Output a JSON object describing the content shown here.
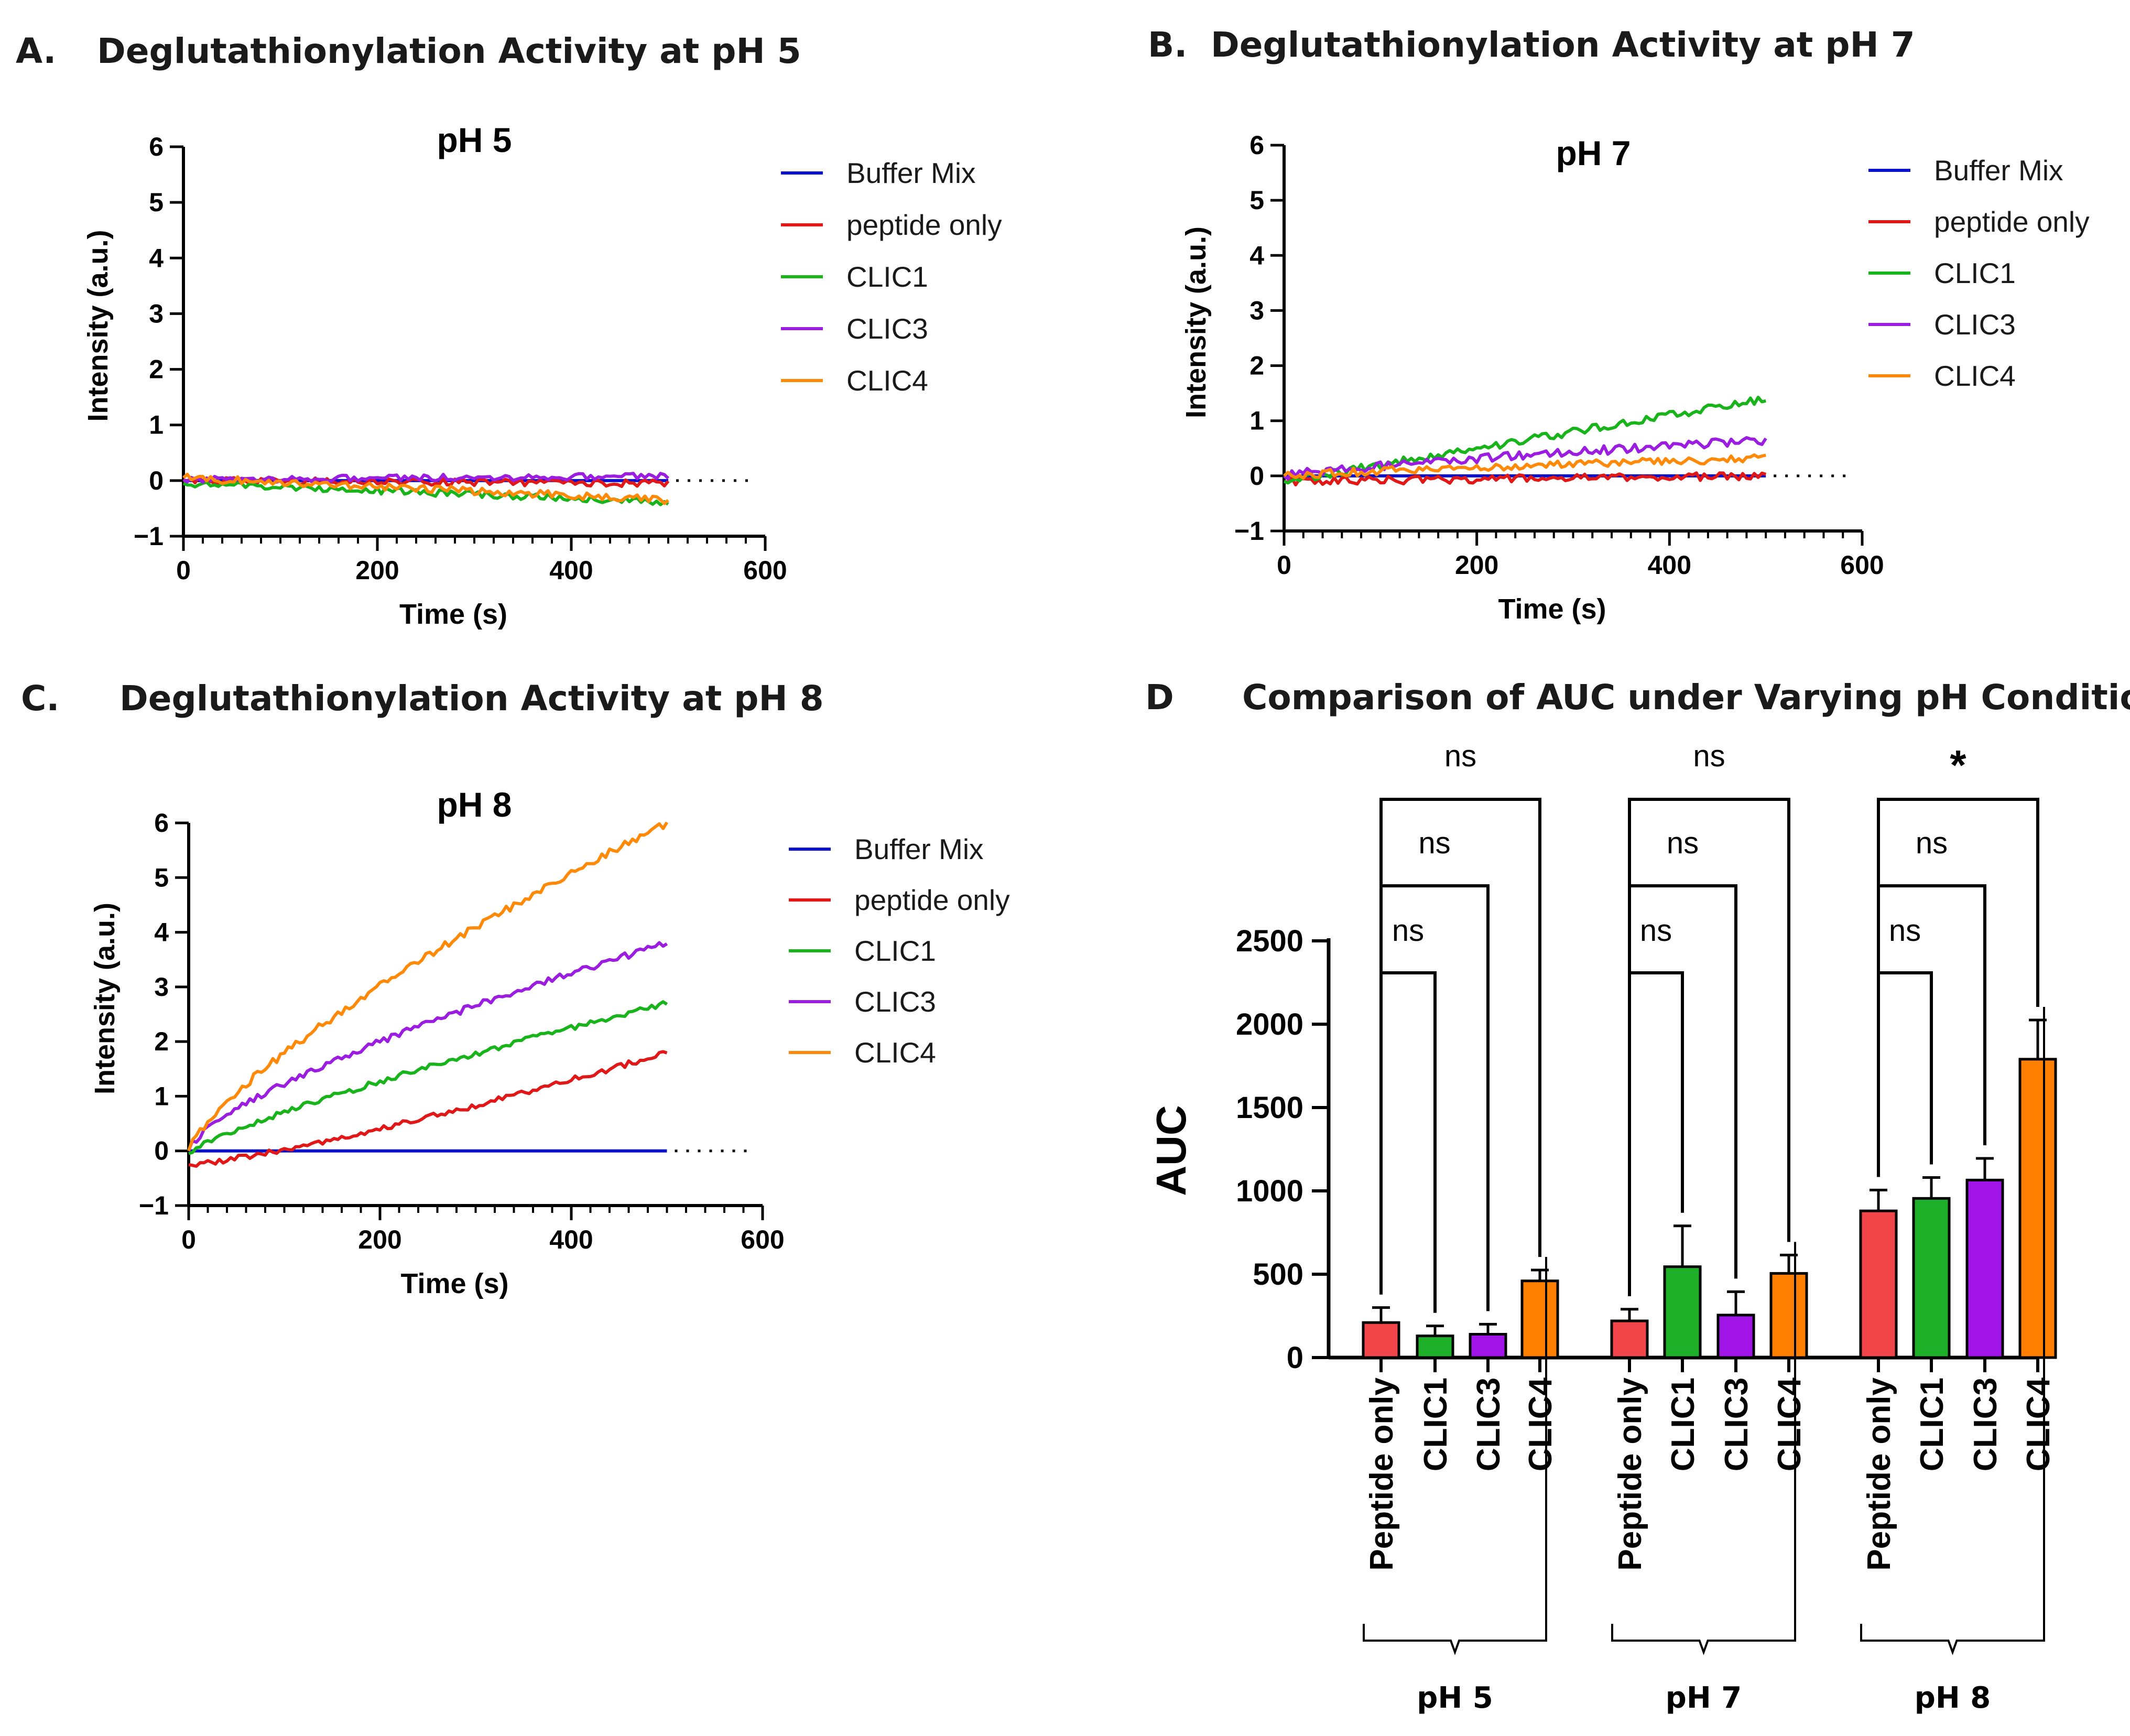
{
  "colors": {
    "Buffer Mix": "#0a12cc",
    "peptide only": "#e01818",
    "CLIC1": "#19b31c",
    "CLIC3": "#9b1ee0",
    "CLIC4": "#ff8a0a",
    "bar_peptide": "#f2454a",
    "bar_clic1": "#1fb02a",
    "bar_clic3": "#a014e8",
    "bar_clic4": "#ff8000"
  },
  "chart_data": [
    {
      "panel": "A.",
      "panel_title": "Deglutathionylation Activity at pH 5",
      "type": "line",
      "title": "pH 5",
      "xlabel": "Time (s)",
      "ylabel": "Intensity (a.u.)",
      "xlim": [
        0,
        600
      ],
      "ylim": [
        -1,
        6
      ],
      "xticks": [
        "0",
        "200",
        "400",
        "600"
      ],
      "yticks": [
        "−1",
        "0",
        "1",
        "2",
        "3",
        "4",
        "5",
        "6"
      ],
      "legend": [
        "Buffer Mix",
        "peptide only",
        "CLIC1",
        "CLIC3",
        "CLIC4"
      ],
      "series": [
        {
          "name": "Buffer Mix",
          "start": 0,
          "end": 0,
          "curve": 1,
          "noise": 0
        },
        {
          "name": "peptide only",
          "start": 0,
          "end": -0.05,
          "curve": 1,
          "noise": 0.06
        },
        {
          "name": "CLIC1",
          "start": -0.05,
          "end": -0.38,
          "curve": 1,
          "noise": 0.06
        },
        {
          "name": "CLIC3",
          "start": 0.02,
          "end": 0.08,
          "curve": 1,
          "noise": 0.06
        },
        {
          "name": "CLIC4",
          "start": 0.05,
          "end": -0.35,
          "curve": 1,
          "noise": 0.07
        }
      ],
      "series_end_time": 500
    },
    {
      "panel": "B.",
      "panel_title": "Deglutathionylation Activity at pH 7",
      "type": "line",
      "title": "pH 7",
      "xlabel": "Time (s)",
      "ylabel": "Intensity (a.u.)",
      "xlim": [
        0,
        600
      ],
      "ylim": [
        -1,
        6
      ],
      "xticks": [
        "0",
        "200",
        "400",
        "600"
      ],
      "yticks": [
        "−1",
        "0",
        "1",
        "2",
        "3",
        "4",
        "5",
        "6"
      ],
      "legend": [
        "Buffer Mix",
        "peptide only",
        "CLIC1",
        "CLIC3",
        "CLIC4"
      ],
      "series": [
        {
          "name": "Buffer Mix",
          "start": 0,
          "end": 0,
          "curve": 1,
          "noise": 0
        },
        {
          "name": "peptide only",
          "start": -0.1,
          "end": 0.0,
          "curve": 1,
          "noise": 0.07
        },
        {
          "name": "CLIC1",
          "start": -0.1,
          "end": 1.4,
          "curve": 1,
          "noise": 0.07
        },
        {
          "name": "CLIC3",
          "start": 0.0,
          "end": 0.65,
          "curve": 0.8,
          "noise": 0.08
        },
        {
          "name": "CLIC4",
          "start": 0.0,
          "end": 0.32,
          "curve": 0.8,
          "noise": 0.07
        }
      ],
      "series_end_time": 500
    },
    {
      "panel": "C.",
      "panel_title": "Deglutathionylation Activity at pH 8",
      "type": "line",
      "title": "pH 8",
      "xlabel": "Time (s)",
      "ylabel": "Intensity (a.u.)",
      "xlim": [
        0,
        600
      ],
      "ylim": [
        -1,
        6
      ],
      "xticks": [
        "0",
        "200",
        "400",
        "600"
      ],
      "yticks": [
        "−1",
        "0",
        "1",
        "2",
        "3",
        "4",
        "5",
        "6"
      ],
      "legend": [
        "Buffer Mix",
        "peptide only",
        "CLIC1",
        "CLIC3",
        "CLIC4"
      ],
      "series": [
        {
          "name": "Buffer Mix",
          "start": 0,
          "end": 0,
          "curve": 1,
          "noise": 0
        },
        {
          "name": "peptide only",
          "start": -0.25,
          "end": 1.8,
          "curve": 1.25,
          "noise": 0.05
        },
        {
          "name": "CLIC1",
          "start": -0.05,
          "end": 2.7,
          "curve": 0.8,
          "noise": 0.05
        },
        {
          "name": "CLIC3",
          "start": 0.0,
          "end": 3.8,
          "curve": 0.7,
          "noise": 0.06
        },
        {
          "name": "CLIC4",
          "start": 0.0,
          "end": 6.0,
          "curve": 0.75,
          "noise": 0.07
        }
      ],
      "series_end_time": 500
    },
    {
      "panel": "D",
      "panel_title": "Comparison of AUC under Varying pH Conditions",
      "type": "bar",
      "ylabel": "AUC",
      "ylim": [
        0,
        2500
      ],
      "yticks": [
        "0",
        "500",
        "1000",
        "1500",
        "2000",
        "2500"
      ],
      "groups": [
        {
          "name": "pH 5",
          "categories": [
            "Peptide only",
            "CLIC1",
            "CLIC3",
            "CLIC4"
          ],
          "values": [
            210,
            130,
            140,
            460
          ],
          "errors": [
            90,
            60,
            60,
            65
          ],
          "comparisons": [
            {
              "from": 0,
              "to": 1,
              "label": "ns"
            },
            {
              "from": 0,
              "to": 2,
              "label": "ns"
            },
            {
              "from": 0,
              "to": 3,
              "label": "ns"
            }
          ]
        },
        {
          "name": "pH 7",
          "categories": [
            "Peptide only",
            "CLIC1",
            "CLIC3",
            "CLIC4"
          ],
          "values": [
            220,
            545,
            255,
            505
          ],
          "errors": [
            70,
            245,
            140,
            110
          ],
          "comparisons": [
            {
              "from": 0,
              "to": 1,
              "label": "ns"
            },
            {
              "from": 0,
              "to": 2,
              "label": "ns"
            },
            {
              "from": 0,
              "to": 3,
              "label": "ns"
            }
          ]
        },
        {
          "name": "pH 8",
          "categories": [
            "Peptide only",
            "CLIC1",
            "CLIC3",
            "CLIC4"
          ],
          "values": [
            880,
            955,
            1065,
            1790
          ],
          "errors": [
            125,
            125,
            130,
            235
          ],
          "comparisons": [
            {
              "from": 0,
              "to": 1,
              "label": "ns"
            },
            {
              "from": 0,
              "to": 2,
              "label": "ns"
            },
            {
              "from": 0,
              "to": 3,
              "label": "*"
            }
          ]
        }
      ]
    }
  ]
}
